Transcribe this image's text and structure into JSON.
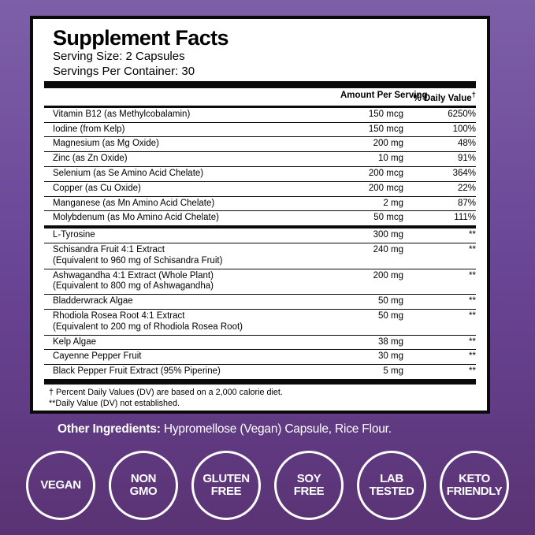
{
  "colors": {
    "background_top": "#7d5fa8",
    "background_middle": "#6a4596",
    "background_bottom": "#5a3374",
    "panel_background": "#ffffff",
    "panel_border": "#0a0a0a",
    "text": "#000000",
    "badge_and_footer_text": "#ffffff"
  },
  "panel": {
    "title": "Supplement Facts",
    "serving_size": "Serving Size: 2 Capsules",
    "servings_per_container": "Servings Per Container: 30",
    "columns": {
      "amount": "Amount Per Serving",
      "daily_value": "% Daily Value",
      "dagger": "†"
    },
    "rows": [
      {
        "name": "Vitamin B12 (as Methylcobalamin)",
        "amount": "150 mcg",
        "dv": "6250%"
      },
      {
        "name": "Iodine (from Kelp)",
        "amount": "150 mcg",
        "dv": "100%"
      },
      {
        "name": "Magnesium (as Mg Oxide)",
        "amount": "200 mg",
        "dv": "48%"
      },
      {
        "name": "Zinc (as Zn Oxide)",
        "amount": "10 mg",
        "dv": "91%"
      },
      {
        "name": "Selenium (as Se Amino Acid Chelate)",
        "amount": "200 mcg",
        "dv": "364%"
      },
      {
        "name": "Copper (as Cu Oxide)",
        "amount": "200 mcg",
        "dv": "22%"
      },
      {
        "name": "Manganese (as Mn Amino Acid Chelate)",
        "amount": "2 mg",
        "dv": "87%"
      },
      {
        "name": "Molybdenum (as Mo Amino Acid Chelate)",
        "amount": "50 mcg",
        "dv": "111%"
      },
      {
        "name": "L-Tyrosine",
        "amount": "300 mg",
        "dv": "**",
        "section_break": true
      },
      {
        "name": "Schisandra Fruit 4:1 Extract",
        "sub": "(Equivalent to 960 mg of Schisandra Fruit)",
        "amount": "240 mg",
        "dv": "**"
      },
      {
        "name": "Ashwagandha 4:1 Extract (Whole Plant)",
        "sub": "(Equivalent to 800 mg of Ashwagandha)",
        "amount": "200 mg",
        "dv": "**"
      },
      {
        "name": "Bladderwrack Algae",
        "amount": "50 mg",
        "dv": "**"
      },
      {
        "name": "Rhodiola Rosea Root 4:1 Extract",
        "sub": "(Equivalent to 200 mg of Rhodiola Rosea Root)",
        "amount": "50 mg",
        "dv": "**"
      },
      {
        "name": "Kelp Algae",
        "amount": "38 mg",
        "dv": "**"
      },
      {
        "name": "Cayenne Pepper Fruit",
        "amount": "30 mg",
        "dv": "**"
      },
      {
        "name": "Black Pepper Fruit Extract (95% Piperine)",
        "amount": "5 mg",
        "dv": "**"
      }
    ],
    "footnotes": [
      "† Percent Daily Values (DV) are based on a 2,000 calorie diet.",
      "**Daily Value (DV) not established."
    ]
  },
  "other_ingredients": {
    "label": "Other Ingredients:",
    "text": " Hypromellose (Vegan) Capsule, Rice Flour."
  },
  "badges": [
    {
      "id": "vegan",
      "lines": [
        "VEGAN"
      ]
    },
    {
      "id": "non-gmo",
      "lines": [
        "NON",
        "GMO"
      ]
    },
    {
      "id": "gluten-free",
      "lines": [
        "GLUTEN",
        "FREE"
      ]
    },
    {
      "id": "soy-free",
      "lines": [
        "SOY",
        "FREE"
      ]
    },
    {
      "id": "lab-tested",
      "lines": [
        "LAB",
        "TESTED"
      ]
    },
    {
      "id": "keto-friendly",
      "lines": [
        "KETO",
        "FRIENDLY"
      ]
    }
  ]
}
